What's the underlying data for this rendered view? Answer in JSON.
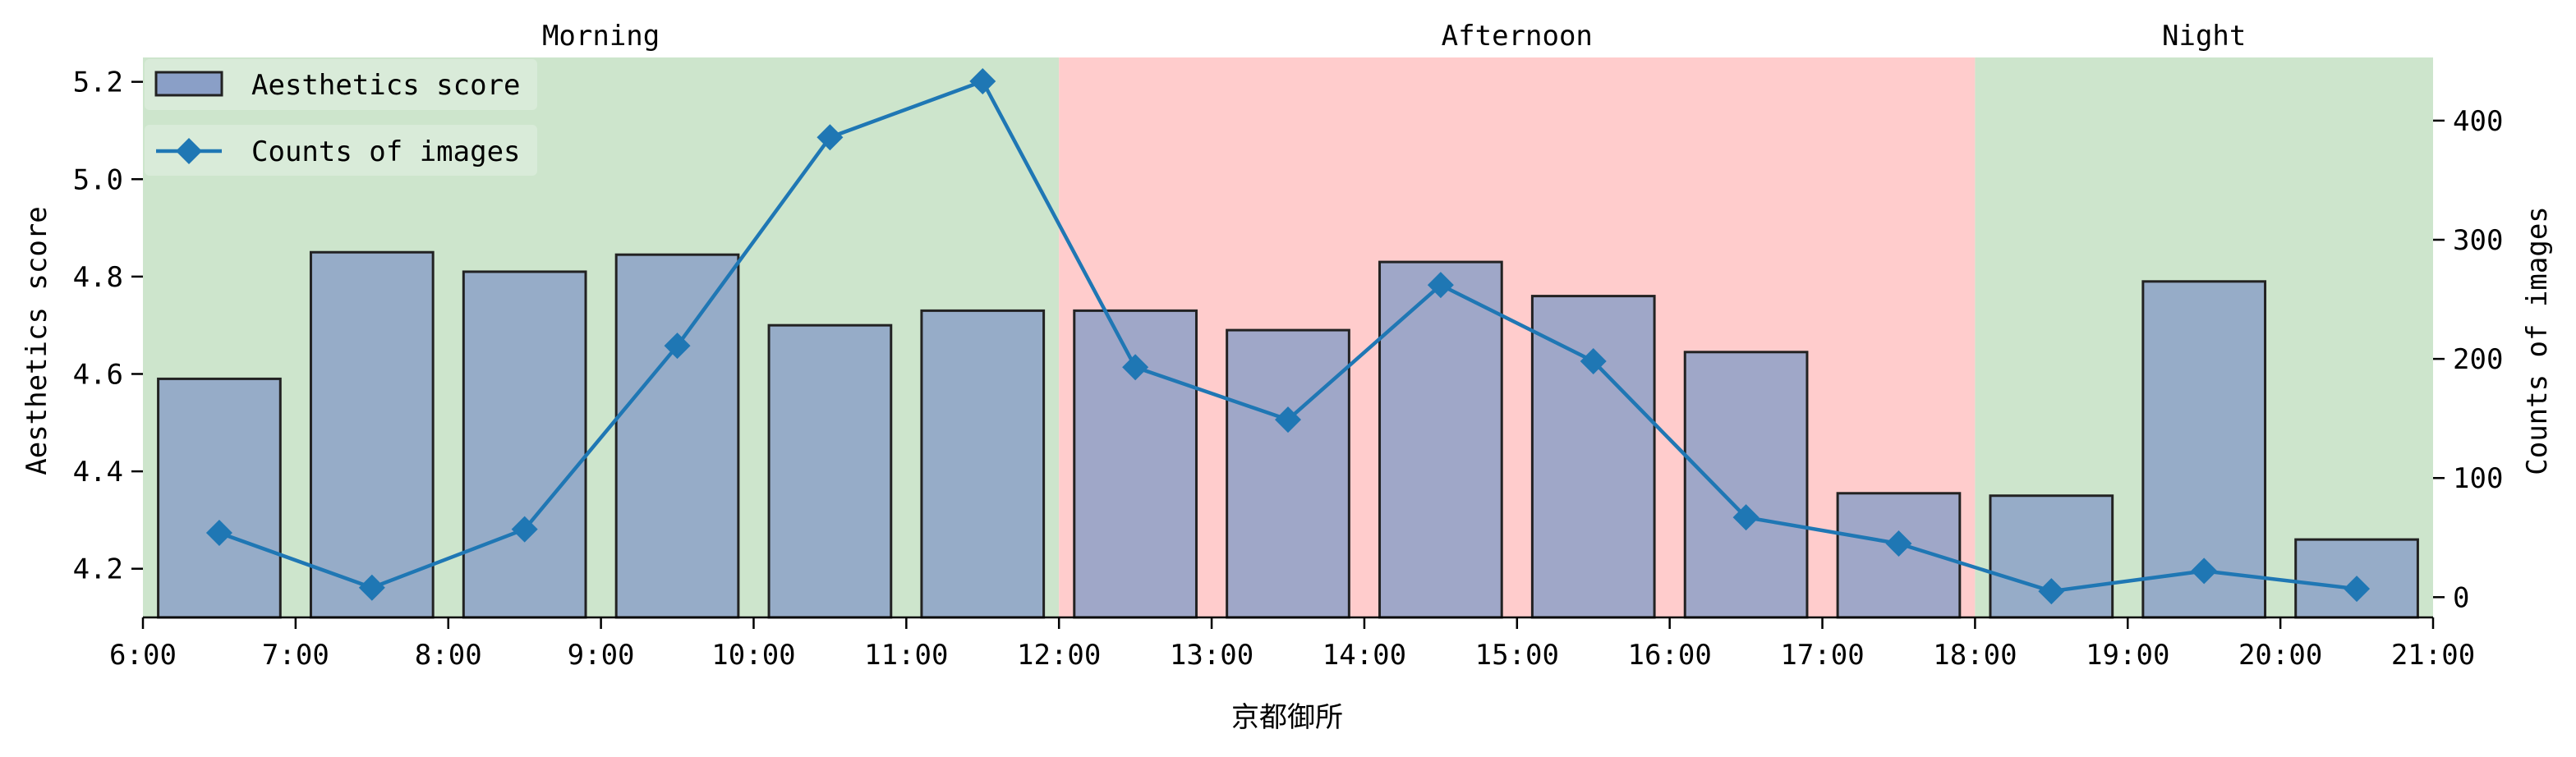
{
  "chart_data": {
    "type": "bar+line",
    "xlabel": "京都御所",
    "x_ticks": [
      "6:00",
      "7:00",
      "8:00",
      "9:00",
      "10:00",
      "11:00",
      "12:00",
      "13:00",
      "14:00",
      "15:00",
      "16:00",
      "17:00",
      "18:00",
      "19:00",
      "20:00",
      "21:00"
    ],
    "x_range": [
      6,
      21
    ],
    "periods": [
      {
        "label": "Morning",
        "start": 6,
        "end": 12,
        "color": "#cde5cc"
      },
      {
        "label": "Afternoon",
        "start": 12,
        "end": 18,
        "color": "#ffcccc"
      },
      {
        "label": "Night",
        "start": 18,
        "end": 21,
        "color": "#cde5cc"
      }
    ],
    "bar_series": {
      "name": "Aesthetics score",
      "axis_label": "Aesthetics score",
      "color": "#8a9fc7",
      "x": [
        6.5,
        7.5,
        8.5,
        9.5,
        10.5,
        11.5,
        12.5,
        13.5,
        14.5,
        15.5,
        16.5,
        17.5,
        18.5,
        19.5,
        20.5
      ],
      "values": [
        4.59,
        4.85,
        4.81,
        4.845,
        4.7,
        4.73,
        4.73,
        4.69,
        4.83,
        4.76,
        4.645,
        4.355,
        4.35,
        4.79,
        4.26
      ],
      "ylim": [
        4.1,
        5.25
      ],
      "ticks": [
        4.2,
        4.4,
        4.6,
        4.8,
        5.0,
        5.2
      ],
      "tick_labels": [
        "4.2",
        "4.4",
        "4.6",
        "4.8",
        "5.0",
        "5.2"
      ]
    },
    "line_series": {
      "name": "Counts of images",
      "axis_label": "Counts of images",
      "color": "#1f77b4",
      "x": [
        6.5,
        7.5,
        8.5,
        9.5,
        10.5,
        11.5,
        12.5,
        13.5,
        14.5,
        15.5,
        16.5,
        17.5,
        18.5,
        19.5,
        20.5
      ],
      "values": [
        54,
        8,
        57,
        211,
        386,
        433,
        193,
        149,
        262,
        198,
        67,
        45,
        5,
        22,
        7
      ],
      "ylim": [
        -17,
        453
      ],
      "ticks": [
        0,
        100,
        200,
        300,
        400
      ],
      "tick_labels": [
        "0",
        "100",
        "200",
        "300",
        "400"
      ]
    }
  }
}
